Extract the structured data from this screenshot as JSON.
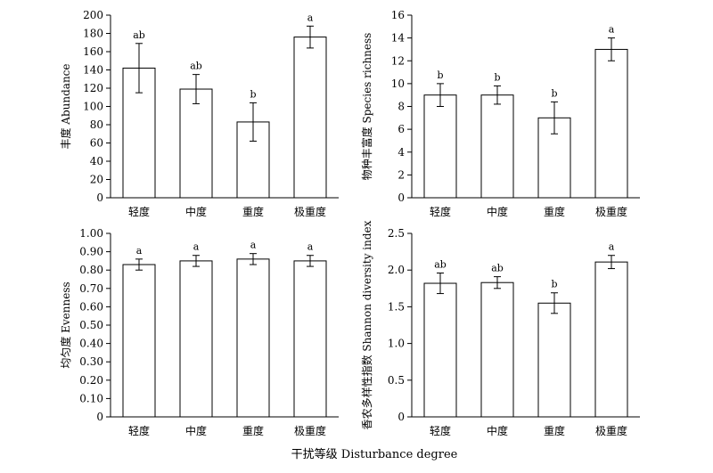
{
  "figure": {
    "xlabel": "干扰等级 Disturbance degree"
  },
  "chart_data": [
    {
      "type": "bar",
      "ylabel": "丰度 Abundance",
      "categories": [
        "轻度",
        "中度",
        "重度",
        "极重度"
      ],
      "values": [
        142,
        119,
        83,
        176
      ],
      "errors": [
        27,
        16,
        21,
        12
      ],
      "labels": [
        "ab",
        "ab",
        "b",
        "a"
      ],
      "ylim": [
        0,
        200
      ],
      "yticks": [
        "0",
        "20",
        "40",
        "60",
        "80",
        "100",
        "120",
        "140",
        "160",
        "180",
        "200"
      ]
    },
    {
      "type": "bar",
      "ylabel": "物种丰富度 Species richness",
      "categories": [
        "轻度",
        "中度",
        "重度",
        "极重度"
      ],
      "values": [
        9.0,
        9.0,
        7.0,
        13.0
      ],
      "errors": [
        1.0,
        0.8,
        1.4,
        1.0
      ],
      "labels": [
        "b",
        "b",
        "b",
        "a"
      ],
      "ylim": [
        0,
        16
      ],
      "yticks": [
        "0",
        "2",
        "4",
        "6",
        "8",
        "10",
        "12",
        "14",
        "16"
      ]
    },
    {
      "type": "bar",
      "ylabel": "均匀度 Evenness",
      "categories": [
        "轻度",
        "中度",
        "重度",
        "极重度"
      ],
      "values": [
        0.83,
        0.85,
        0.86,
        0.85
      ],
      "errors": [
        0.03,
        0.03,
        0.03,
        0.03
      ],
      "labels": [
        "a",
        "a",
        "a",
        "a"
      ],
      "ylim": [
        0,
        1.0
      ],
      "yticks": [
        "0",
        "0.10",
        "0.20",
        "0.30",
        "0.40",
        "0.50",
        "0.60",
        "0.70",
        "0.80",
        "0.90",
        "1.00"
      ]
    },
    {
      "type": "bar",
      "ylabel": "香农多样性指数 Shannon diversity index",
      "categories": [
        "轻度",
        "中度",
        "重度",
        "极重度"
      ],
      "values": [
        1.82,
        1.83,
        1.55,
        2.11
      ],
      "errors": [
        0.14,
        0.08,
        0.14,
        0.09
      ],
      "labels": [
        "ab",
        "ab",
        "b",
        "a"
      ],
      "ylim": [
        0,
        2.5
      ],
      "yticks": [
        "0",
        "0.5",
        "1.0",
        "1.5",
        "2.0",
        "2.5"
      ]
    }
  ]
}
